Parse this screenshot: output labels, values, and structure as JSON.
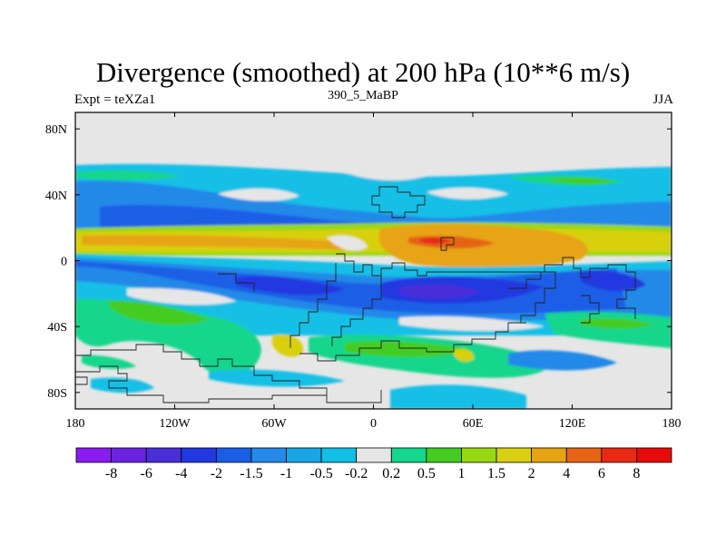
{
  "title": "Divergence (smoothed) at 200 hPa (10**6 m/s)",
  "left_label": "Expt = teXZa1",
  "center_label": "390_5_MaBP",
  "right_label": "JJA",
  "chart_data": {
    "type": "heatmap",
    "variable": "Divergence (smoothed) at 200 hPa",
    "units": "10**6 m/s",
    "xlim": [
      -180,
      180
    ],
    "ylim": [
      -90,
      90
    ],
    "x_ticks": [
      {
        "value": -180,
        "label": "180"
      },
      {
        "value": -120,
        "label": "120W"
      },
      {
        "value": -60,
        "label": "60W"
      },
      {
        "value": 0,
        "label": "0"
      },
      {
        "value": 60,
        "label": "60E"
      },
      {
        "value": 120,
        "label": "120E"
      },
      {
        "value": 180,
        "label": "180"
      }
    ],
    "y_ticks": [
      {
        "value": 80,
        "label": "80N"
      },
      {
        "value": 40,
        "label": "40N"
      },
      {
        "value": 0,
        "label": "0"
      },
      {
        "value": -40,
        "label": "40S"
      },
      {
        "value": -80,
        "label": "80S"
      }
    ],
    "colorbar": {
      "levels": [
        "-8",
        "-6",
        "-4",
        "-2",
        "-1.5",
        "-1",
        "-0.5",
        "-0.2",
        "0.2",
        "0.5",
        "1",
        "1.5",
        "2",
        "4",
        "6",
        "8"
      ],
      "colors": [
        "#8a1cf0",
        "#6a24e0",
        "#4a2ed8",
        "#2238e0",
        "#1a5ee6",
        "#2489e8",
        "#1aa6e6",
        "#12bfe6",
        "#e6e6e6",
        "#14d68c",
        "#44cc22",
        "#98d812",
        "#d8d010",
        "#e6a414",
        "#e66414",
        "#e82a14",
        "#e60a0a"
      ]
    },
    "features": [
      {
        "name": "NH midlatitude convergence band",
        "lat_center": 30,
        "sign": "negative",
        "level": "-1"
      },
      {
        "name": "Northern tropical divergence band",
        "lat_center": 12,
        "sign": "positive",
        "level": "2"
      },
      {
        "name": "Divergence maximum over Africa/Arabia",
        "lon": 40,
        "lat": 12,
        "level": "4"
      },
      {
        "name": "Equatorial convergence band",
        "lat_center": -5,
        "sign": "negative",
        "level": "-2"
      },
      {
        "name": "Convergence minimum over Indian Ocean",
        "lon": 35,
        "lat": -22,
        "level": "-4"
      },
      {
        "name": "Southern subtropical divergence band",
        "lat_center": -35,
        "sign": "positive",
        "level": "1"
      },
      {
        "name": "Polar cap near zero",
        "lat_center": 75,
        "level": "0.2"
      }
    ]
  }
}
